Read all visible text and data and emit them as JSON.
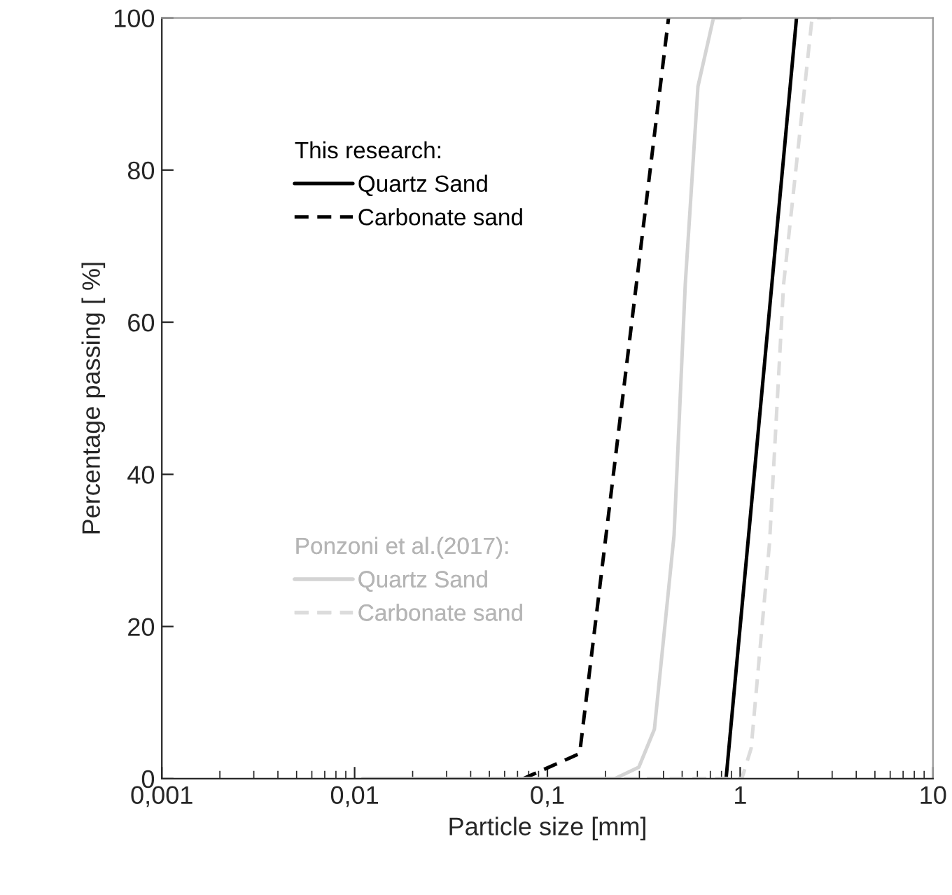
{
  "chart_data": {
    "type": "line",
    "xlabel": "Particle size [mm]",
    "ylabel": "Percentage passing [ %]",
    "log": "x",
    "xlim": [
      0.001,
      10
    ],
    "ylim": [
      0,
      100
    ],
    "xticks": [
      {
        "value": 0.001,
        "label": "0,001"
      },
      {
        "value": 0.01,
        "label": "0,01"
      },
      {
        "value": 0.1,
        "label": "0,1"
      },
      1,
      10
    ],
    "yticks": [
      0,
      20,
      40,
      60,
      80,
      100
    ],
    "grid": false,
    "legend": "left",
    "annotations": [
      "This research:",
      "Ponzoni et al.(2017):"
    ],
    "series": [
      {
        "name": "Quartz Sand",
        "color": "#000000",
        "line_style": "solid",
        "x": [
          0.845,
          1.96
        ],
        "values": [
          0,
          100
        ]
      },
      {
        "name": "Carbonate sand",
        "color": "#000000",
        "line_style": "dashed",
        "x": [
          0.075,
          0.147,
          0.425
        ],
        "values": [
          0,
          3.3,
          100
        ]
      },
      {
        "name": "Quartz Sand",
        "color": "#d4d4d4",
        "line_style": "solid",
        "x": [
          0.011,
          0.224,
          0.298,
          0.359,
          0.454,
          0.519,
          0.604,
          0.727,
          1.0
        ],
        "values": [
          0,
          0,
          1.5,
          6.5,
          32,
          65,
          91,
          100,
          100
        ]
      },
      {
        "name": "Carbonate sand",
        "color": "#dcdcdc",
        "line_style": "dashed",
        "x": [
          0.25,
          1.02,
          1.14,
          1.42,
          1.68,
          2.36,
          3.2
        ],
        "values": [
          0,
          0,
          4,
          31,
          65,
          100,
          100
        ]
      }
    ]
  }
}
